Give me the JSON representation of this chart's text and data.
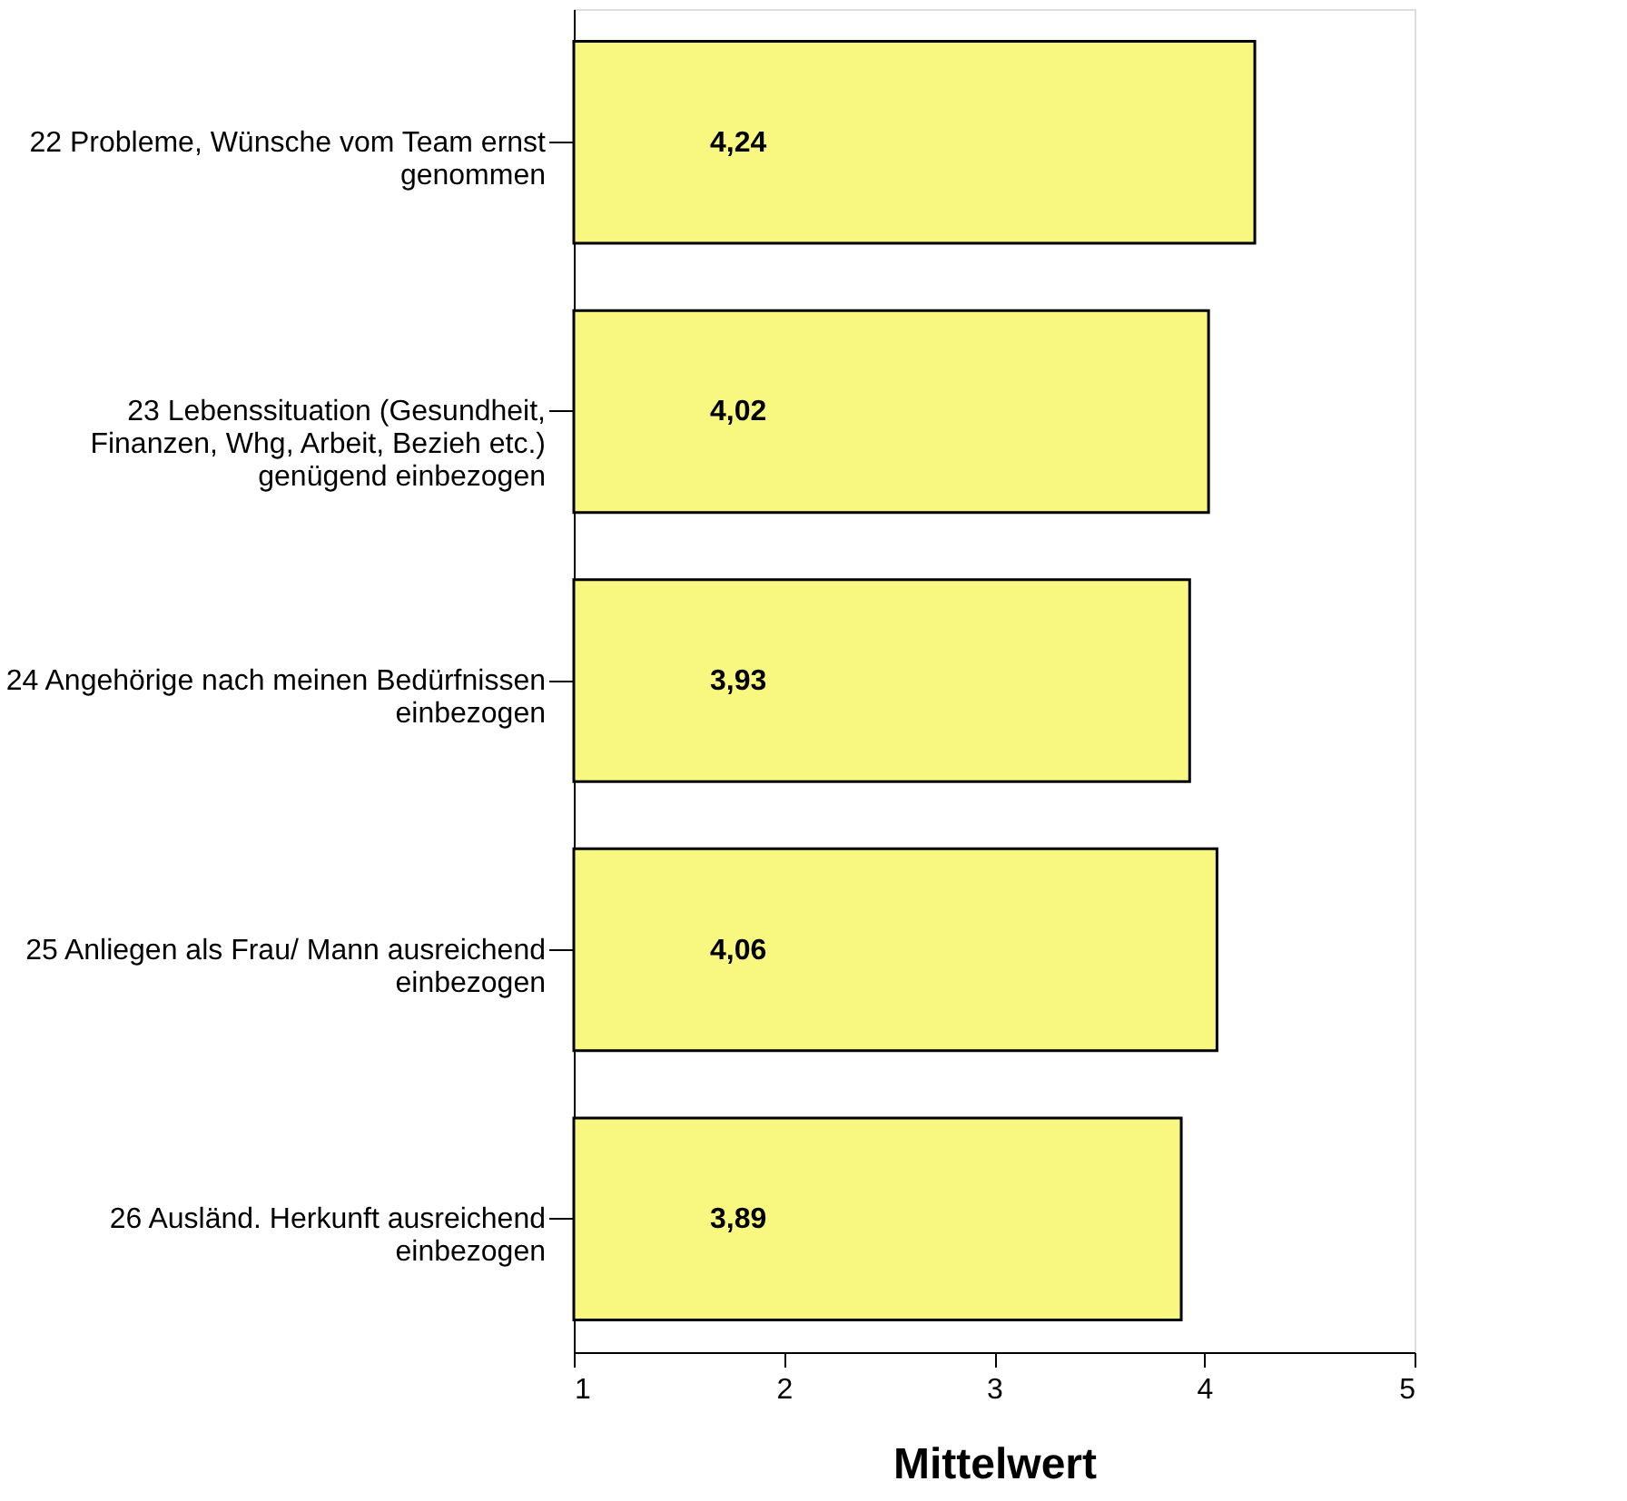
{
  "chart_data": {
    "type": "bar",
    "orientation": "horizontal",
    "xlabel": "Mittelwert",
    "categories": [
      "22 Probleme, Wünsche vom Team ernst\ngenommen",
      "23 Lebenssituation (Gesundheit,\nFinanzen, Whg, Arbeit, Bezieh etc.)\ngenügend einbezogen",
      "24 Angehörige nach meinen Bedürfnissen\neinbezogen",
      "25 Anliegen als Frau/ Mann ausreichend\neinbezogen",
      "26 Ausländ. Herkunft ausreichend\neinbezogen"
    ],
    "values": [
      4.24,
      4.02,
      3.93,
      4.06,
      3.89
    ],
    "value_labels": [
      "4,24",
      "4,02",
      "3,93",
      "4,06",
      "3,89"
    ],
    "color": "#f8f880",
    "xlim": [
      1,
      5
    ],
    "xticks": [
      1,
      2,
      3,
      4,
      5
    ],
    "grid": false
  }
}
